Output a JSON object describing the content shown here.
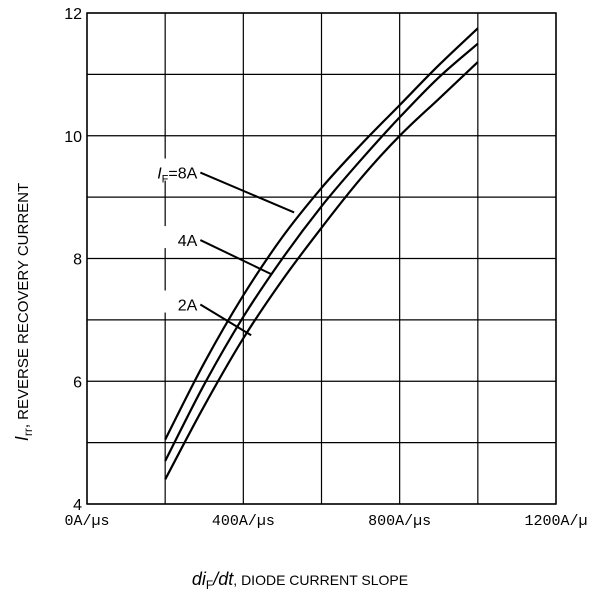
{
  "chart_data": {
    "type": "line",
    "xlabel": {
      "main": "di",
      "sub": "F",
      "slash": "/",
      "dt": "dt",
      "rest": ", DIODE CURRENT SLOPE"
    },
    "ylabel": {
      "main": "I",
      "sub": "rr",
      "rest": ", REVERSE RECOVERY CURRENT"
    },
    "xlim": [
      0,
      1200
    ],
    "ylim": [
      4,
      12
    ],
    "x_ticks": [
      {
        "value": 0,
        "label": "0A/µs"
      },
      {
        "value": 400,
        "label": "400A/µs"
      },
      {
        "value": 800,
        "label": "800A/µs"
      },
      {
        "value": 1200,
        "label": "1200A/µ"
      }
    ],
    "y_ticks": [
      {
        "value": 4,
        "label": "4"
      },
      {
        "value": 6,
        "label": "6"
      },
      {
        "value": 8,
        "label": "8"
      },
      {
        "value": 10,
        "label": "10"
      },
      {
        "value": 12,
        "label": "12"
      }
    ],
    "grid": true,
    "x_grid": [
      0,
      200,
      400,
      600,
      800,
      1000,
      1200
    ],
    "y_grid": [
      4,
      5,
      6,
      7,
      8,
      9,
      10,
      11,
      12
    ],
    "series": [
      {
        "label_main": "I",
        "label_sub": "F",
        "label_rest": "=8A",
        "label_anchor": [
          290,
          9.4
        ],
        "leader_end": [
          530,
          8.75
        ],
        "x": [
          200,
          300,
          400,
          500,
          600,
          700,
          800,
          900,
          1000
        ],
        "values": [
          5.05,
          6.3,
          7.4,
          8.35,
          9.15,
          9.85,
          10.5,
          11.15,
          11.75
        ]
      },
      {
        "label_main": "",
        "label_sub": "",
        "label_rest": "4A",
        "label_anchor": [
          290,
          8.3
        ],
        "leader_end": [
          470,
          7.75
        ],
        "x": [
          200,
          300,
          400,
          500,
          600,
          700,
          800,
          900,
          1000
        ],
        "values": [
          4.7,
          5.95,
          7.05,
          8.0,
          8.85,
          9.6,
          10.3,
          10.95,
          11.5
        ]
      },
      {
        "label_main": "",
        "label_sub": "",
        "label_rest": "2A",
        "label_anchor": [
          290,
          7.25
        ],
        "leader_end": [
          420,
          6.75
        ],
        "x": [
          200,
          300,
          400,
          500,
          600,
          700,
          800,
          900,
          1000
        ],
        "values": [
          4.4,
          5.6,
          6.7,
          7.65,
          8.5,
          9.3,
          10.0,
          10.6,
          11.2
        ]
      }
    ]
  }
}
